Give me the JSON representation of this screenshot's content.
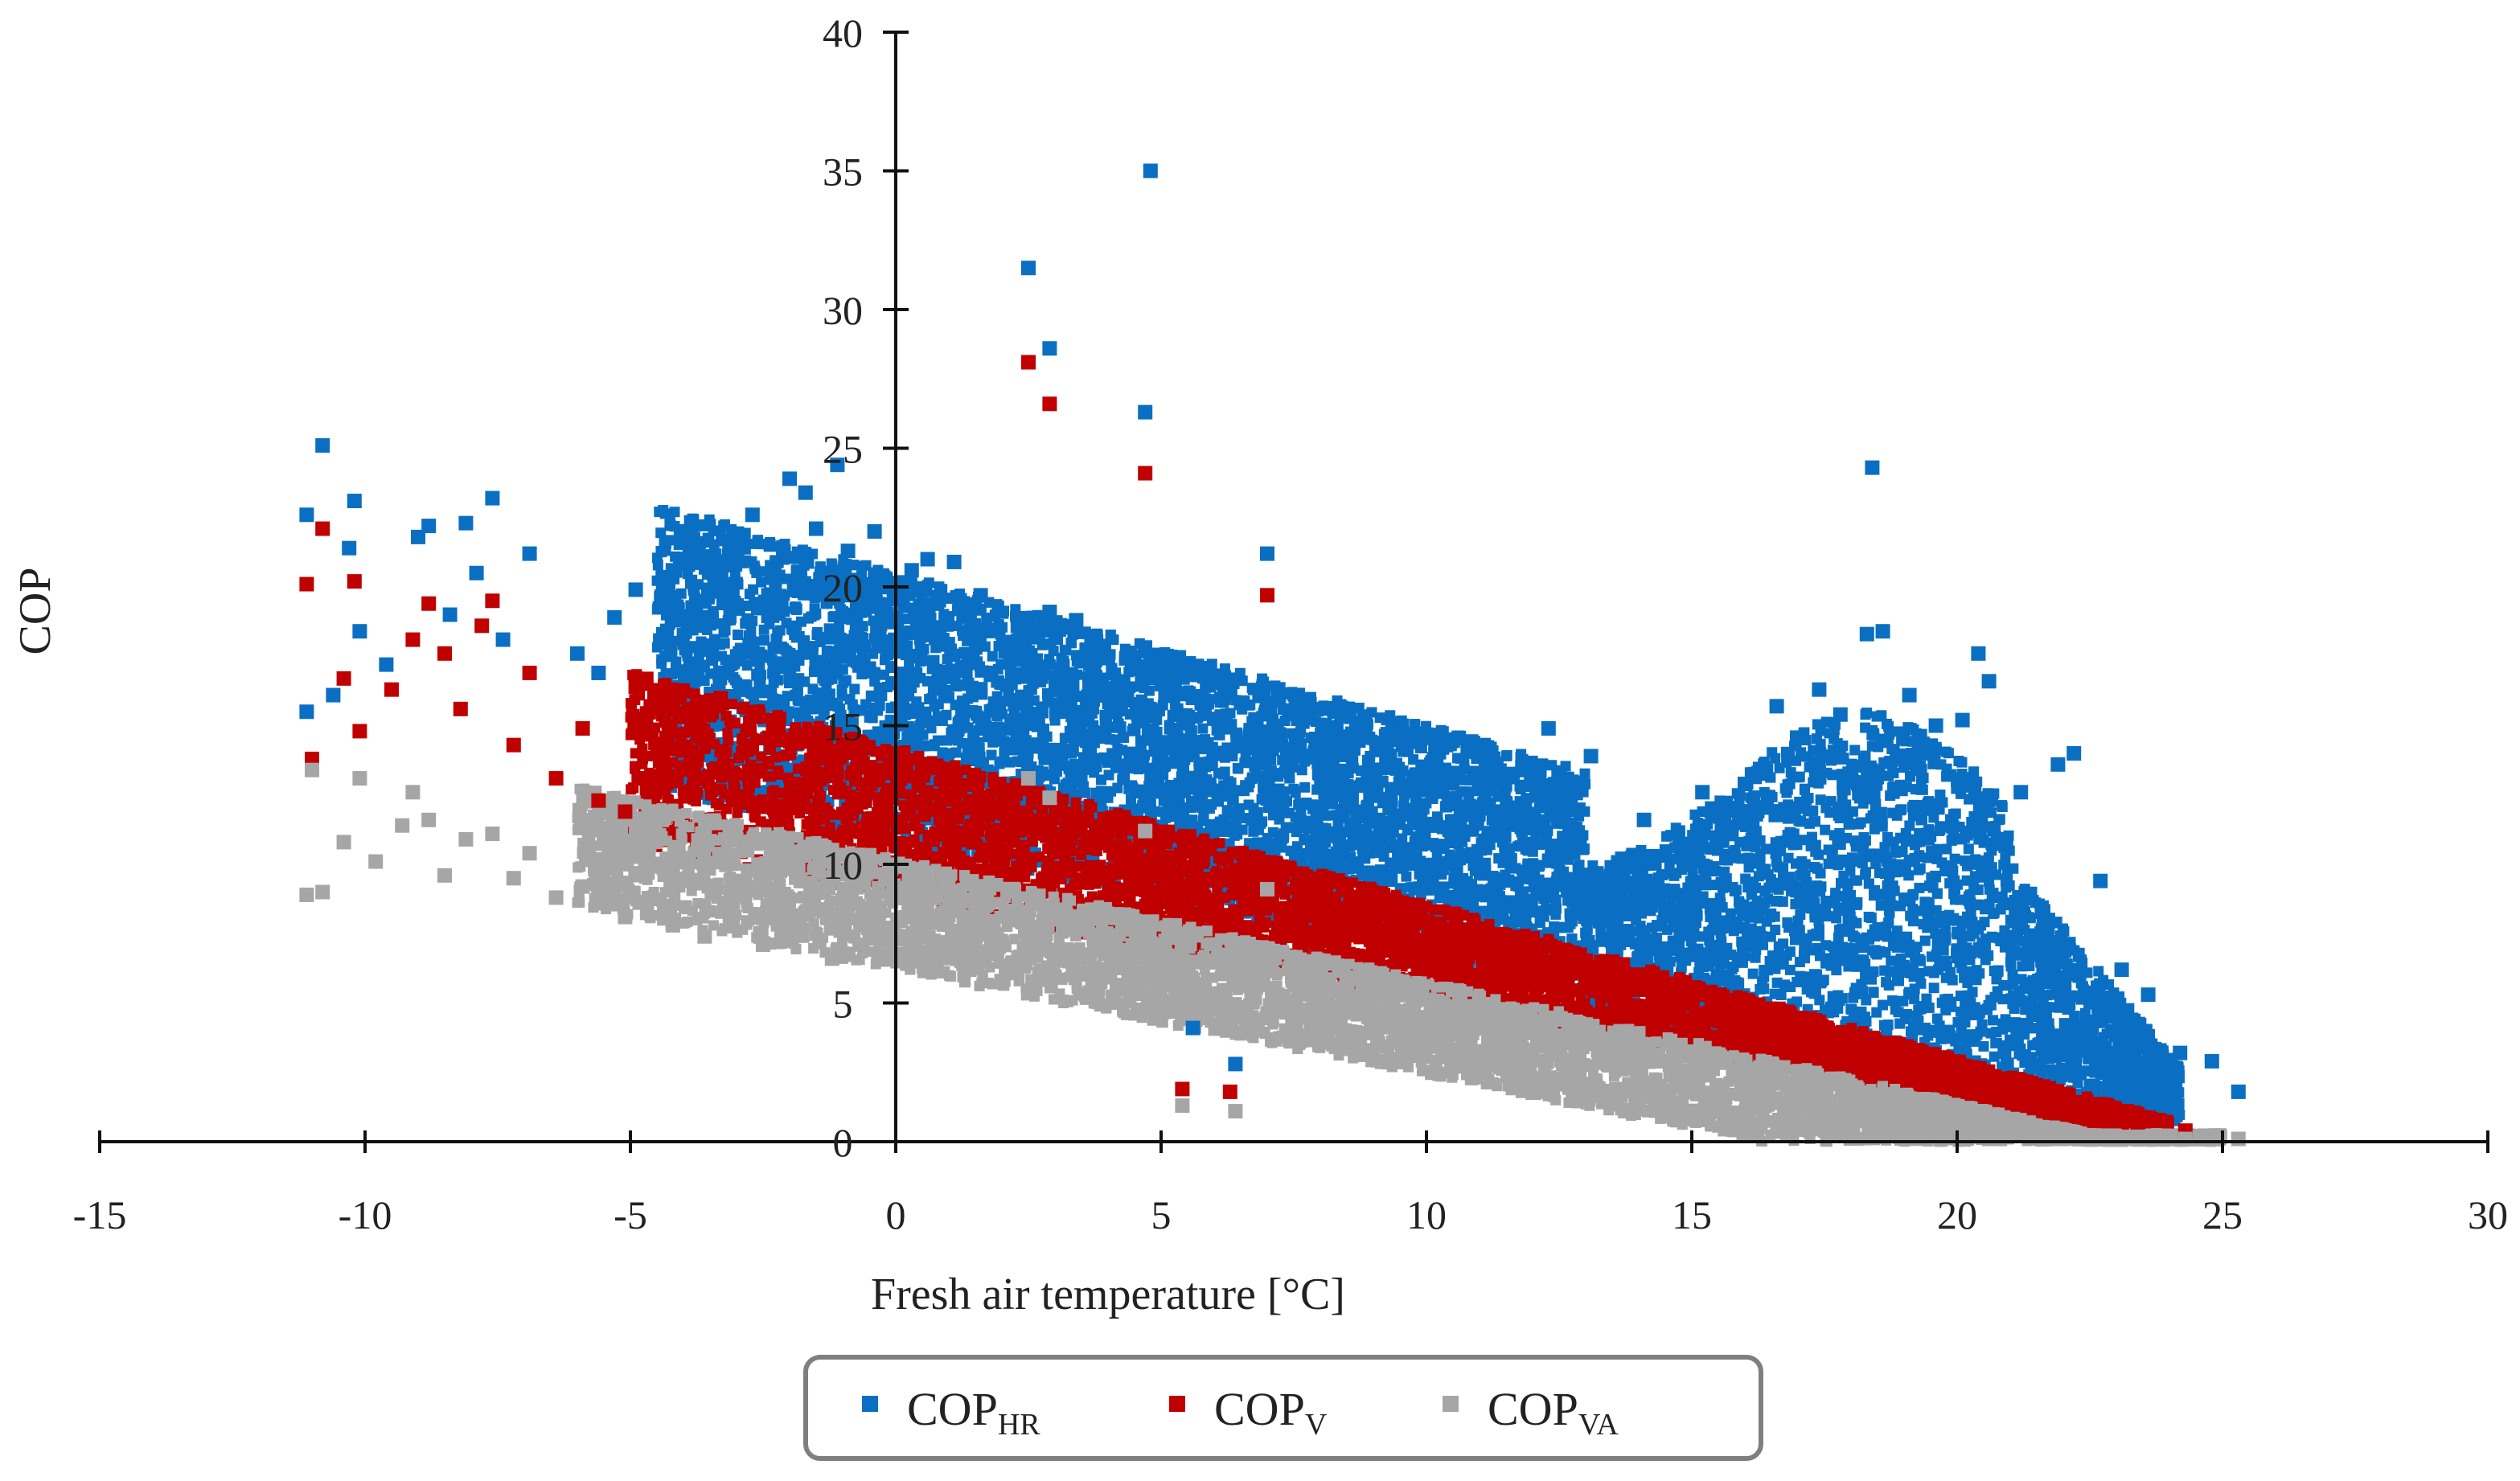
{
  "chart_data": {
    "type": "scatter",
    "title": "",
    "xlabel": "Fresh air temperature [°C]",
    "ylabel": "COP",
    "xlim": [
      -15,
      30
    ],
    "ylim": [
      0,
      40
    ],
    "x_ticks": [
      -15,
      -10,
      -5,
      0,
      5,
      10,
      15,
      20,
      25,
      30
    ],
    "y_ticks": [
      0,
      5,
      10,
      15,
      20,
      25,
      30,
      35,
      40
    ],
    "x_tick_labels": [
      "-15",
      "-10",
      "-5",
      "0",
      "5",
      "10",
      "15",
      "20",
      "25",
      "30"
    ],
    "y_tick_labels": [
      "0",
      "5",
      "10",
      "15",
      "20",
      "25",
      "30",
      "35",
      "40"
    ],
    "legend_position": "bottom-center",
    "series": [
      {
        "name": "COPHR",
        "label_main": "COP",
        "label_sub": "HR",
        "color": "#0a6fc2",
        "points": [
          [
            -11.1,
            22.6
          ],
          [
            -10.8,
            25.1
          ],
          [
            -11.1,
            15.5
          ],
          [
            -10.6,
            16.1
          ],
          [
            -10.2,
            23.1
          ],
          [
            -10.3,
            21.4
          ],
          [
            -10.1,
            18.4
          ],
          [
            -9.6,
            17.2
          ],
          [
            -9.0,
            21.8
          ],
          [
            -8.8,
            22.2
          ],
          [
            -8.4,
            19.0
          ],
          [
            -8.1,
            22.3
          ],
          [
            -7.9,
            20.5
          ],
          [
            -7.6,
            23.2
          ],
          [
            -7.4,
            18.1
          ],
          [
            -6.9,
            21.2
          ],
          [
            -6.0,
            17.6
          ],
          [
            -5.6,
            16.9
          ],
          [
            -5.3,
            18.9
          ],
          [
            -4.9,
            19.9
          ],
          [
            -4.2,
            20.6
          ],
          [
            -3.6,
            21.1
          ],
          [
            -3.2,
            20.1
          ],
          [
            -2.7,
            22.6
          ],
          [
            -2.4,
            19.7
          ],
          [
            -2.0,
            23.9
          ],
          [
            -1.7,
            23.4
          ],
          [
            -1.5,
            22.1
          ],
          [
            -1.1,
            24.4
          ],
          [
            -0.9,
            21.3
          ],
          [
            -0.4,
            22.0
          ],
          [
            -0.2,
            20.3
          ],
          [
            0.3,
            20.6
          ],
          [
            0.6,
            21.0
          ],
          [
            1.1,
            20.9
          ],
          [
            1.6,
            19.7
          ],
          [
            2.3,
            18.6
          ],
          [
            2.9,
            19.1
          ],
          [
            3.4,
            18.8
          ],
          [
            4.4,
            17.6
          ],
          [
            5.6,
            16.0
          ],
          [
            6.2,
            16.2
          ],
          [
            7.0,
            21.2
          ],
          [
            7.5,
            15.5
          ],
          [
            8.3,
            14.3
          ],
          [
            9.1,
            14.3
          ],
          [
            10.3,
            12.7
          ],
          [
            11.3,
            11.9
          ],
          [
            12.3,
            14.9
          ],
          [
            13.1,
            13.9
          ],
          [
            14.1,
            11.6
          ],
          [
            15.2,
            12.6
          ],
          [
            16.0,
            12.9
          ],
          [
            16.6,
            15.7
          ],
          [
            17.4,
            16.3
          ],
          [
            17.8,
            15.4
          ],
          [
            18.3,
            18.3
          ],
          [
            18.6,
            18.4
          ],
          [
            18.4,
            24.3
          ],
          [
            19.1,
            16.1
          ],
          [
            19.6,
            15.0
          ],
          [
            20.1,
            15.2
          ],
          [
            20.4,
            17.6
          ],
          [
            20.6,
            16.6
          ],
          [
            21.2,
            12.6
          ],
          [
            21.9,
            13.6
          ],
          [
            22.2,
            14.0
          ],
          [
            22.7,
            9.4
          ],
          [
            23.1,
            6.2
          ],
          [
            23.6,
            5.3
          ],
          [
            24.2,
            3.2
          ],
          [
            24.8,
            2.9
          ],
          [
            25.3,
            1.8
          ],
          [
            2.5,
            31.5
          ],
          [
            2.9,
            28.6
          ],
          [
            4.8,
            35.0
          ],
          [
            4.7,
            26.3
          ],
          [
            5.6,
            4.1
          ],
          [
            6.4,
            2.8
          ]
        ]
      },
      {
        "name": "COPV",
        "label_main": "COP",
        "label_sub": "V",
        "color": "#c00000",
        "points": [
          [
            -11.1,
            20.1
          ],
          [
            -10.8,
            22.1
          ],
          [
            -11.0,
            13.8
          ],
          [
            -10.4,
            16.7
          ],
          [
            -10.2,
            20.2
          ],
          [
            -10.1,
            14.8
          ],
          [
            -9.5,
            16.3
          ],
          [
            -9.1,
            18.1
          ],
          [
            -8.8,
            19.4
          ],
          [
            -8.5,
            17.6
          ],
          [
            -8.2,
            15.6
          ],
          [
            -7.8,
            18.6
          ],
          [
            -7.6,
            19.5
          ],
          [
            -7.2,
            14.3
          ],
          [
            -6.9,
            16.9
          ],
          [
            -6.4,
            13.1
          ],
          [
            -5.9,
            14.9
          ],
          [
            -5.6,
            12.3
          ],
          [
            -5.1,
            11.9
          ],
          [
            -4.9,
            16.4
          ],
          [
            -4.4,
            13.8
          ],
          [
            -3.9,
            15.6
          ],
          [
            -3.3,
            16.0
          ],
          [
            -2.6,
            13.4
          ],
          [
            -1.9,
            12.5
          ],
          [
            -1.4,
            14.6
          ],
          [
            -0.7,
            14.1
          ],
          [
            0.2,
            13.3
          ],
          [
            1.4,
            12.1
          ],
          [
            2.4,
            11.6
          ],
          [
            3.6,
            10.6
          ],
          [
            4.6,
            10.1
          ],
          [
            5.5,
            9.9
          ],
          [
            6.5,
            9.0
          ],
          [
            7.5,
            8.5
          ],
          [
            8.6,
            7.9
          ],
          [
            9.6,
            7.6
          ],
          [
            10.6,
            7.1
          ],
          [
            11.7,
            6.7
          ],
          [
            12.7,
            6.3
          ],
          [
            13.7,
            6.0
          ],
          [
            14.7,
            5.5
          ],
          [
            15.7,
            5.1
          ],
          [
            16.7,
            4.6
          ],
          [
            17.7,
            3.9
          ],
          [
            18.7,
            3.3
          ],
          [
            19.6,
            2.8
          ],
          [
            20.6,
            2.2
          ],
          [
            21.6,
            1.6
          ],
          [
            22.6,
            1.1
          ],
          [
            23.4,
            0.7
          ],
          [
            24.3,
            0.4
          ],
          [
            2.5,
            28.1
          ],
          [
            2.9,
            26.6
          ],
          [
            4.7,
            24.1
          ],
          [
            7.0,
            19.7
          ],
          [
            5.4,
            1.9
          ],
          [
            6.3,
            1.8
          ]
        ]
      },
      {
        "name": "COPVA",
        "label_main": "COP",
        "label_sub": "VA",
        "color": "#a6a6a6",
        "points": [
          [
            -11.1,
            8.9
          ],
          [
            -10.8,
            9.0
          ],
          [
            -11.0,
            13.4
          ],
          [
            -10.4,
            10.8
          ],
          [
            -10.1,
            13.1
          ],
          [
            -9.8,
            10.1
          ],
          [
            -9.3,
            11.4
          ],
          [
            -9.1,
            12.6
          ],
          [
            -8.8,
            11.6
          ],
          [
            -8.5,
            9.6
          ],
          [
            -8.1,
            10.9
          ],
          [
            -7.6,
            11.1
          ],
          [
            -7.2,
            9.5
          ],
          [
            -6.9,
            10.4
          ],
          [
            -6.4,
            8.8
          ],
          [
            -5.9,
            9.2
          ],
          [
            -5.5,
            8.6
          ],
          [
            -5.1,
            8.1
          ],
          [
            -4.7,
            9.7
          ],
          [
            -4.2,
            7.8
          ],
          [
            -3.6,
            7.4
          ],
          [
            -3.1,
            9.4
          ],
          [
            -2.5,
            7.1
          ],
          [
            -1.9,
            8.1
          ],
          [
            -1.2,
            6.6
          ],
          [
            -0.6,
            7.9
          ],
          [
            0.4,
            7.6
          ],
          [
            1.4,
            6.9
          ],
          [
            2.4,
            6.5
          ],
          [
            3.4,
            6.1
          ],
          [
            4.5,
            5.5
          ],
          [
            5.5,
            5.1
          ],
          [
            6.5,
            4.6
          ],
          [
            7.5,
            4.3
          ],
          [
            8.6,
            3.8
          ],
          [
            9.6,
            3.4
          ],
          [
            10.6,
            3.1
          ],
          [
            11.6,
            2.6
          ],
          [
            12.7,
            2.3
          ],
          [
            13.6,
            1.9
          ],
          [
            14.7,
            1.4
          ],
          [
            15.7,
            0.9
          ],
          [
            16.7,
            0.6
          ],
          [
            17.7,
            0.3
          ],
          [
            18.7,
            0.2
          ],
          [
            19.7,
            0.1
          ],
          [
            20.6,
            0.1
          ],
          [
            21.6,
            0.1
          ],
          [
            22.6,
            0.1
          ],
          [
            23.6,
            0.1
          ],
          [
            24.3,
            0.1
          ],
          [
            2.5,
            13.1
          ],
          [
            2.9,
            12.4
          ],
          [
            4.7,
            11.2
          ],
          [
            7.0,
            9.1
          ],
          [
            5.4,
            1.3
          ],
          [
            6.4,
            1.1
          ],
          [
            25.3,
            0.1
          ]
        ]
      }
    ]
  }
}
